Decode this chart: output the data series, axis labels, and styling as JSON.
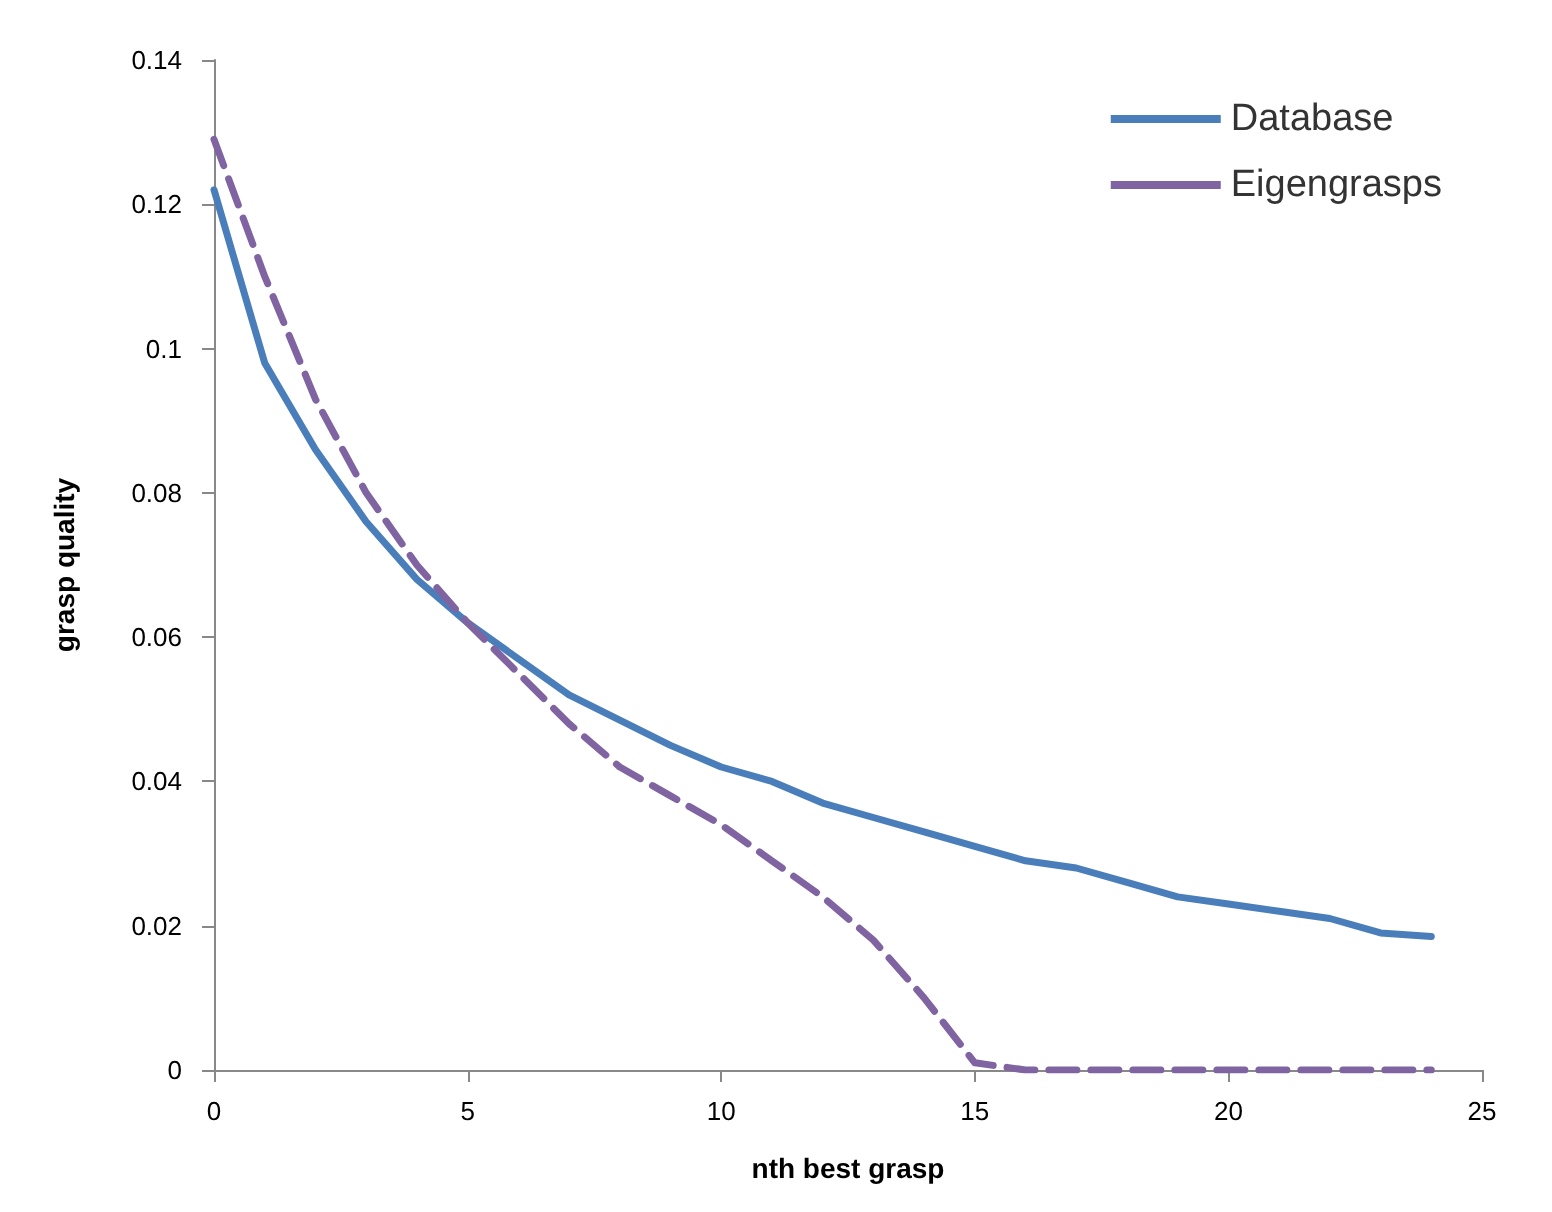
{
  "chart_data": {
    "type": "line",
    "xlabel": "nth best grasp",
    "ylabel": "grasp quality",
    "x": [
      0,
      1,
      2,
      3,
      4,
      5,
      6,
      7,
      8,
      9,
      10,
      11,
      12,
      13,
      14,
      15,
      16,
      17,
      18,
      19,
      20,
      21,
      22,
      23,
      24
    ],
    "series": [
      {
        "name": "Database",
        "color": "#4a7ebb",
        "line_style": "solid",
        "values": [
          0.122,
          0.098,
          0.086,
          0.076,
          0.068,
          0.062,
          0.057,
          0.052,
          0.0485,
          0.045,
          0.042,
          0.04,
          0.037,
          0.035,
          0.033,
          0.031,
          0.029,
          0.028,
          0.026,
          0.024,
          0.023,
          0.022,
          0.021,
          0.019,
          0.0185
        ]
      },
      {
        "name": "Eigengrasps",
        "color": "#8064a2",
        "line_style": "dashed",
        "values": [
          0.129,
          0.11,
          0.093,
          0.08,
          0.07,
          0.062,
          0.055,
          0.048,
          0.042,
          0.038,
          0.034,
          0.029,
          0.024,
          0.018,
          0.01,
          0.001,
          0,
          0,
          0,
          0,
          0,
          0,
          0,
          0,
          0
        ]
      }
    ],
    "xlim": [
      0,
      25
    ],
    "xticks": [
      0,
      5,
      10,
      15,
      20,
      25
    ],
    "ylim": [
      0,
      0.14
    ],
    "yticks": [
      0,
      0.02,
      0.04,
      0.06,
      0.08,
      0.1,
      0.12,
      0.14
    ],
    "grid": false,
    "legend": "top right",
    "marker": "none"
  }
}
